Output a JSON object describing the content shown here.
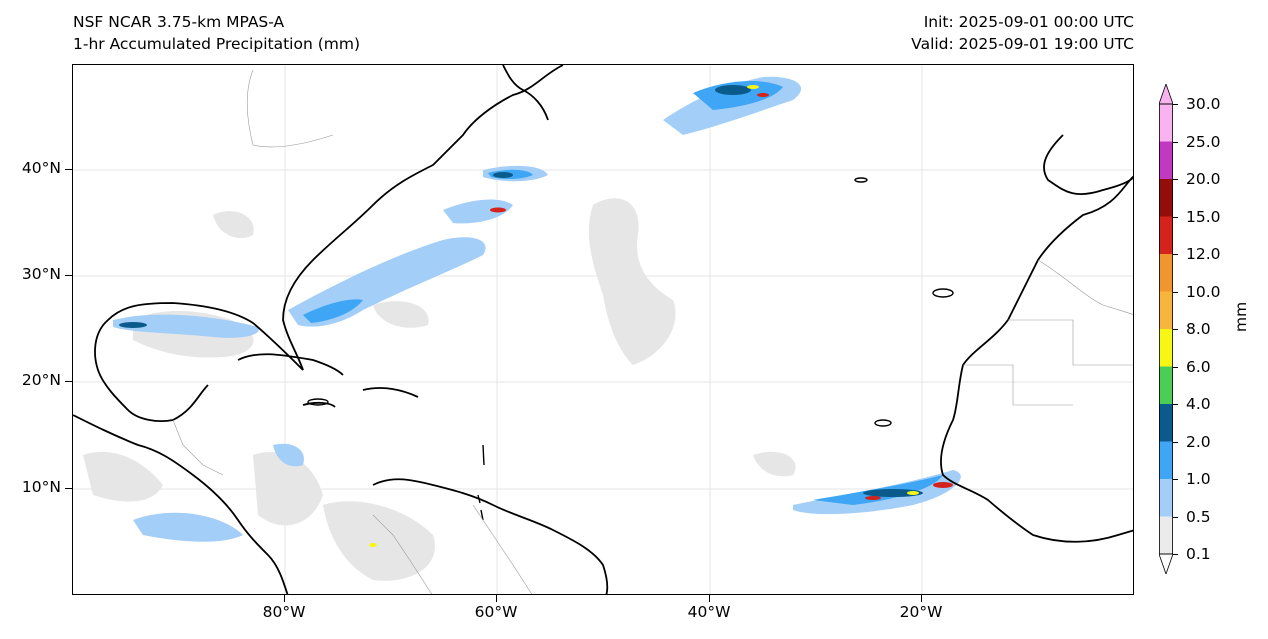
{
  "header": {
    "model": "NSF NCAR 3.75-km MPAS-A",
    "field": "1-hr Accumulated Precipitation (mm)",
    "init": "Init: 2025-09-01 00:00 UTC",
    "valid": "Valid: 2025-09-01 19:00 UTC"
  },
  "axes": {
    "lat_labels": [
      "40°N",
      "30°N",
      "20°N",
      "10°N"
    ],
    "lon_labels": [
      "80°W",
      "60°W",
      "40°W",
      "20°W"
    ]
  },
  "colorbar": {
    "unit": "mm",
    "levels": [
      "0.1",
      "0.5",
      "1.0",
      "2.0",
      "4.0",
      "6.0",
      "8.0",
      "10.0",
      "12.0",
      "15.0",
      "20.0",
      "25.0",
      "30.0"
    ],
    "colors": [
      "#ebebeb",
      "#a3cef8",
      "#3ea6f4",
      "#0a5b8c",
      "#4ccd56",
      "#f7f716",
      "#f8b43c",
      "#f1962e",
      "#d3231c",
      "#930d0a",
      "#c139c0",
      "#f9b3ef"
    ],
    "extend": "both"
  },
  "map": {
    "projection": "plate carree",
    "extent_lon": [
      -100,
      0
    ],
    "extent_lat": [
      0,
      50
    ],
    "gridlines": true,
    "coastlines": true,
    "borders": true
  }
}
